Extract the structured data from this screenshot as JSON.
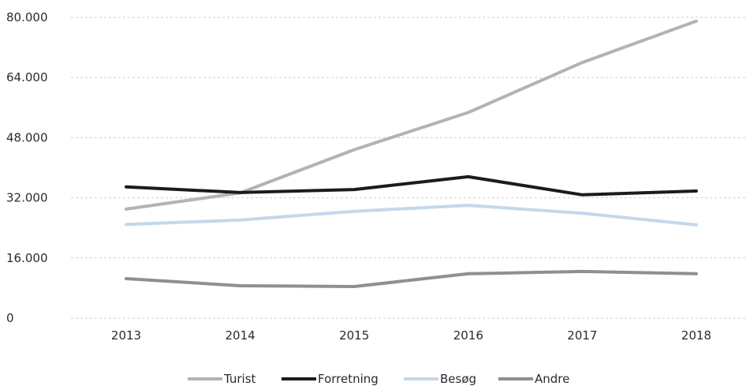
{
  "chart_data": {
    "type": "line",
    "title": "",
    "xlabel": "",
    "ylabel": "",
    "categories": [
      "2013",
      "2014",
      "2015",
      "2016",
      "2017",
      "2018"
    ],
    "ylim": [
      0,
      80000
    ],
    "yticks": [
      {
        "value": 0,
        "label": "0"
      },
      {
        "value": 16000,
        "label": "16.000"
      },
      {
        "value": 32000,
        "label": "32.000"
      },
      {
        "value": 48000,
        "label": "48.000"
      },
      {
        "value": 64000,
        "label": "64.000"
      },
      {
        "value": 80000,
        "label": "80.000"
      }
    ],
    "grid": true,
    "legend_position": "bottom",
    "series": [
      {
        "name": "Turist",
        "color": "#b3b3b3",
        "values": [
          29000,
          33300,
          44800,
          54700,
          68000,
          79000
        ]
      },
      {
        "name": "Forretning",
        "color": "#1f1a17",
        "values": [
          34900,
          33400,
          34200,
          37600,
          32800,
          33800
        ]
      },
      {
        "name": "Besøg",
        "color": "#c6d7ea",
        "values": [
          24900,
          26100,
          28400,
          30000,
          27900,
          24800
        ]
      },
      {
        "name": "Andre",
        "color": "#8f8f8f",
        "values": [
          10500,
          8600,
          8400,
          11800,
          12400,
          11800
        ]
      }
    ]
  }
}
